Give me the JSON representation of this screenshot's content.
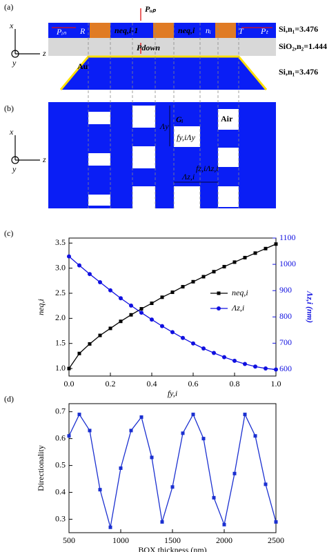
{
  "panel_a": {
    "label": "(a)",
    "axis_x": "x",
    "axis_z": "z",
    "axis_y": "y",
    "si_top": "Si,n₁=3.476",
    "sio2": "SiO₂,n₂=1.444",
    "si_bottom": "Si,n₁=3.476",
    "p_in": "Pᵢₙ",
    "r": "R",
    "p_up": "Pᵤₚ",
    "n_prev": "neq,i-1",
    "n_cur": "neq,i",
    "n_i": "nᵢ",
    "t": "T",
    "p_t": "Pₜ",
    "p_down": "Pdown",
    "au": "Au"
  },
  "panel_b": {
    "label": "(b)",
    "axis_x": "x",
    "axis_z": "z",
    "axis_y": "y",
    "g": "Gᵢ",
    "air": "Air",
    "lambda_y": "Λy",
    "fy": "fy,iΛy",
    "fz": "fz,iΛz,i",
    "lambda_z": "Λz,i"
  },
  "chart_data": [
    {
      "type": "line",
      "panel_label": "(c)",
      "x_label": "fy,i",
      "y_label": "neq,i",
      "y2_label": "Λz,i (nm)",
      "x": [
        0,
        0.05,
        0.1,
        0.15,
        0.2,
        0.25,
        0.3,
        0.35,
        0.4,
        0.45,
        0.5,
        0.55,
        0.6,
        0.65,
        0.7,
        0.75,
        0.8,
        0.85,
        0.9,
        0.95,
        1.0
      ],
      "xlim": [
        0,
        1
      ],
      "xticks": [
        {
          "value": 0,
          "label": "0.0"
        },
        0.2,
        0.4,
        0.6,
        0.8,
        {
          "value": 1,
          "label": "1.0"
        }
      ],
      "ylim": [
        0.85,
        3.6
      ],
      "yticks": [
        {
          "value": 1,
          "label": "1.0"
        },
        1.5,
        {
          "value": 2,
          "label": "2.0"
        },
        2.5,
        {
          "value": 3,
          "label": "3.0"
        },
        3.5
      ],
      "y2lim": [
        575,
        1100
      ],
      "y2ticks": [
        600,
        700,
        800,
        900,
        1000,
        1100
      ],
      "series": [
        {
          "name": "neq,i",
          "color": "#000000",
          "marker": "square",
          "values": [
            1.0,
            1.3,
            1.49,
            1.66,
            1.8,
            1.94,
            2.07,
            2.19,
            2.3,
            2.42,
            2.52,
            2.63,
            2.73,
            2.83,
            2.93,
            3.03,
            3.12,
            3.21,
            3.3,
            3.39,
            3.48
          ]
        },
        {
          "name": "Λz,i",
          "color": "#1010e0",
          "marker": "circle",
          "axis": "y2",
          "values": [
            1030,
            996,
            963,
            932,
            901,
            871,
            843,
            816,
            790,
            765,
            742,
            720,
            699,
            680,
            663,
            647,
            633,
            621,
            611,
            604,
            600
          ]
        }
      ]
    },
    {
      "type": "line",
      "panel_label": "(d)",
      "x_label": "BOX thickness (nm)",
      "y_label": "Directionality",
      "x": [
        500,
        600,
        700,
        800,
        900,
        1000,
        1100,
        1200,
        1300,
        1400,
        1500,
        1600,
        1700,
        1800,
        1900,
        2000,
        2100,
        2200,
        2300,
        2400,
        2500
      ],
      "xlim": [
        500,
        2500
      ],
      "xticks": [
        500,
        1000,
        1500,
        2000,
        2500
      ],
      "ylim": [
        0.25,
        0.73
      ],
      "yticks": [
        0.3,
        0.4,
        0.5,
        0.6,
        0.7
      ],
      "series": [
        {
          "name": "Directionality",
          "color": "#1a2fd0",
          "marker": "square",
          "values": [
            0.61,
            0.69,
            0.63,
            0.41,
            0.27,
            0.49,
            0.63,
            0.68,
            0.53,
            0.29,
            0.42,
            0.62,
            0.69,
            0.6,
            0.38,
            0.28,
            0.47,
            0.69,
            0.61,
            0.43,
            0.29
          ]
        }
      ]
    }
  ]
}
